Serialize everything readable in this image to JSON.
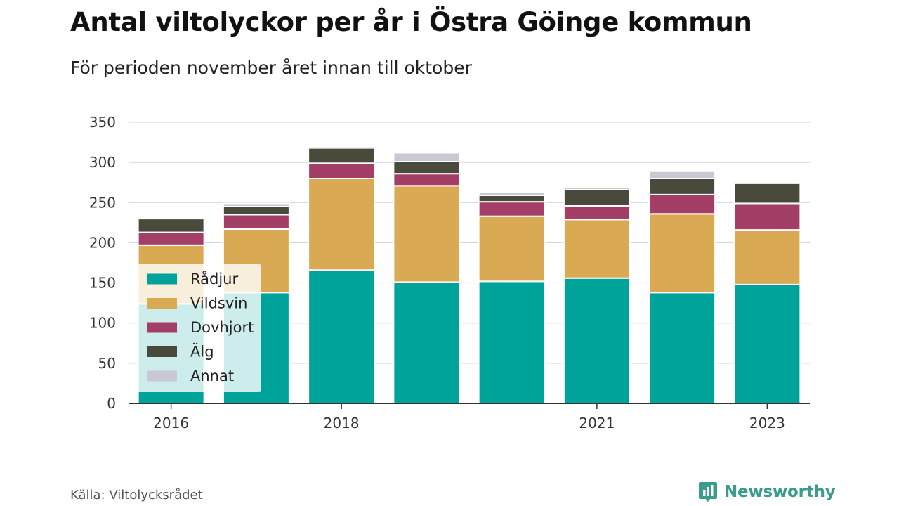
{
  "title": "Antal viltolyckor per år i Östra Göinge kommun",
  "subtitle": "För perioden november året innan till oktober",
  "source": "Källa: Viltolycksrådet",
  "brand": {
    "name": "Newsworthy",
    "color": "#3a9c8c"
  },
  "chart_data": {
    "type": "bar",
    "stacked": true,
    "categories": [
      "2016",
      "2017",
      "2018",
      "2019",
      "2020",
      "2021",
      "2022",
      "2023"
    ],
    "x_tick_labels": [
      "2016",
      "",
      "2018",
      "",
      "",
      "2021",
      "",
      "2023"
    ],
    "ylim": [
      0,
      350
    ],
    "y_ticks": [
      0,
      50,
      100,
      150,
      200,
      250,
      300,
      350
    ],
    "grid": true,
    "legend_position": "left",
    "series": [
      {
        "name": "Rådjur",
        "color": "#00a39a",
        "values": [
          124,
          138,
          166,
          151,
          152,
          156,
          138,
          148
        ]
      },
      {
        "name": "Vildsvin",
        "color": "#d9a953",
        "values": [
          73,
          79,
          114,
          120,
          81,
          73,
          98,
          68
        ]
      },
      {
        "name": "Dovhjort",
        "color": "#a33f66",
        "values": [
          16,
          18,
          19,
          15,
          18,
          17,
          24,
          33
        ]
      },
      {
        "name": "Älg",
        "color": "#4a4a3c",
        "values": [
          17,
          10,
          19,
          15,
          8,
          20,
          20,
          25
        ]
      },
      {
        "name": "Annat",
        "color": "#c9c9d4",
        "values": [
          0,
          4,
          2,
          11,
          4,
          3,
          9,
          0
        ]
      }
    ]
  }
}
